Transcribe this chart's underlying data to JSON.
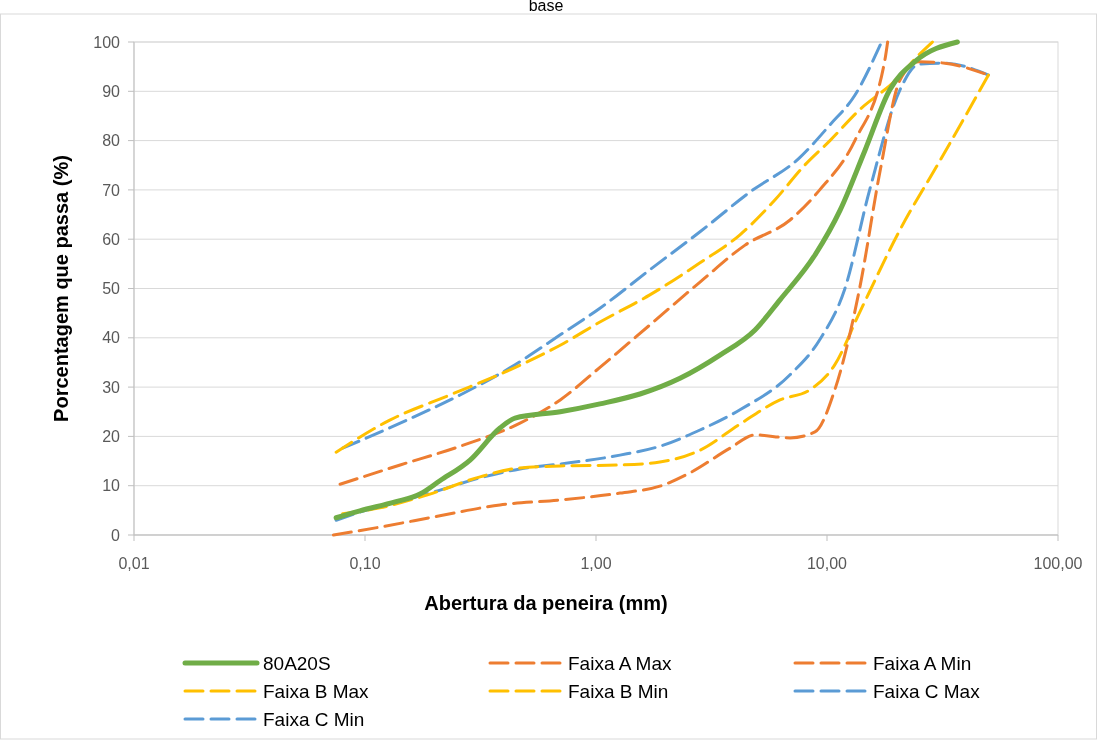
{
  "chart_data": {
    "type": "line",
    "title": "base",
    "xlabel": "Abertura da peneira (mm)",
    "ylabel": "Porcentagem que passa (%)",
    "log": "x",
    "xlim": [
      0.01,
      100
    ],
    "xticks": [
      {
        "value": 0.01,
        "label": "0,01"
      },
      {
        "value": 0.1,
        "label": "0,10"
      },
      {
        "value": 1,
        "label": "1,00"
      },
      {
        "value": 10,
        "label": "10,00"
      },
      {
        "value": 100,
        "label": "100,00"
      }
    ],
    "ylim": [
      0,
      100
    ],
    "yticks": [
      0,
      10,
      20,
      30,
      40,
      50,
      60,
      70,
      80,
      90,
      100
    ],
    "grid": "y",
    "legend": "bottom",
    "marker": "none",
    "series": [
      {
        "name": "80A20S",
        "color": "#70ad47",
        "line_style": "solid",
        "x": [
          0.075,
          0.095,
          0.135,
          0.173,
          0.211,
          0.285,
          0.384,
          0.446,
          0.7,
          1.04,
          1.55,
          2.31,
          3.44,
          4.88,
          6.26,
          8.87,
          11.4,
          14.6,
          18.7,
          24,
          36.7
        ],
        "values": [
          3.5,
          4.9,
          6.7,
          8.3,
          11,
          15.2,
          21.7,
          23.7,
          25,
          26.6,
          28.6,
          31.8,
          36.5,
          41.6,
          47.7,
          56.8,
          65.9,
          78,
          90.3,
          96,
          100
        ]
      },
      {
        "name": "Faixa A Max",
        "color": "#ed7d31",
        "line_style": "dashed",
        "x": [
          0.078,
          0.142,
          0.258,
          0.469,
          0.7,
          1.04,
          1.71,
          2.82,
          4.42,
          6.92,
          9.3,
          13.2,
          17.8,
          18.3
        ],
        "values": [
          10.3,
          14.2,
          18,
          22.7,
          27.4,
          34,
          42.6,
          51.3,
          58.8,
          63.9,
          70,
          80,
          96.3,
          100
        ]
      },
      {
        "name": "Faixa A Min",
        "color": "#ed7d31",
        "line_style": "dashed",
        "x": [
          0.073,
          0.116,
          0.211,
          0.384,
          0.7,
          1.27,
          1.89,
          2.55,
          3.8,
          4.88,
          6.92,
          8.87,
          10.8,
          13.8,
          17,
          20.7,
          25,
          32.4,
          48
        ],
        "values": [
          0,
          1.6,
          3.9,
          6.1,
          7.1,
          8.5,
          9.9,
          12.6,
          17.6,
          20.3,
          19.7,
          20.9,
          29.4,
          49.7,
          74,
          92.3,
          96,
          95.7,
          93.6
        ]
      },
      {
        "name": "Faixa B Max",
        "color": "#ffc000",
        "line_style": "dashed",
        "x": [
          0.075,
          0.128,
          0.233,
          0.424,
          0.7,
          1.04,
          1.71,
          2.82,
          4.2,
          5.96,
          8,
          10.3,
          13.8,
          19.9,
          25,
          28.6
        ],
        "values": [
          16.8,
          23.3,
          28.4,
          33.5,
          38.5,
          43.2,
          48.7,
          55.2,
          60.9,
          68,
          75,
          80,
          86.2,
          92.3,
          97.4,
          100
        ]
      },
      {
        "name": "Faixa B Min",
        "color": "#ffc000",
        "line_style": "dashed",
        "x": [
          0.08,
          0.116,
          0.191,
          0.315,
          0.469,
          0.7,
          1.27,
          1.89,
          2.82,
          4.2,
          6.26,
          8.4,
          10.8,
          13.8,
          20.7,
          30.9,
          50
        ],
        "values": [
          4.3,
          5.5,
          8.3,
          11.8,
          13.6,
          14,
          14.2,
          14.8,
          17.2,
          22.5,
          27.4,
          29.4,
          34.5,
          45,
          61.9,
          76,
          93.3
        ]
      },
      {
        "name": "Faixa C Max",
        "color": "#5b9bd5",
        "line_style": "dashed",
        "x": [
          0.08,
          0.142,
          0.258,
          0.424,
          0.7,
          1.04,
          1.71,
          2.82,
          4.65,
          7.6,
          10.3,
          13.2,
          17
        ],
        "values": [
          17.6,
          22.7,
          28.4,
          33.9,
          40.6,
          46,
          53.8,
          61.5,
          69.6,
          76.5,
          83.2,
          89.2,
          99.4
        ]
      },
      {
        "name": "Faixa C Min",
        "color": "#5b9bd5",
        "line_style": "dashed",
        "x": [
          0.075,
          0.116,
          0.191,
          0.315,
          0.469,
          0.7,
          1.27,
          1.89,
          2.82,
          4.2,
          6.92,
          9.3,
          11.9,
          15.3,
          20.7,
          25,
          32.4,
          50
        ],
        "values": [
          3,
          5.9,
          8.5,
          11.6,
          13.4,
          14.4,
          16.2,
          18,
          21.3,
          25.4,
          32.5,
          39.6,
          49.7,
          70,
          90.3,
          95.5,
          95.7,
          93.3
        ]
      }
    ]
  }
}
